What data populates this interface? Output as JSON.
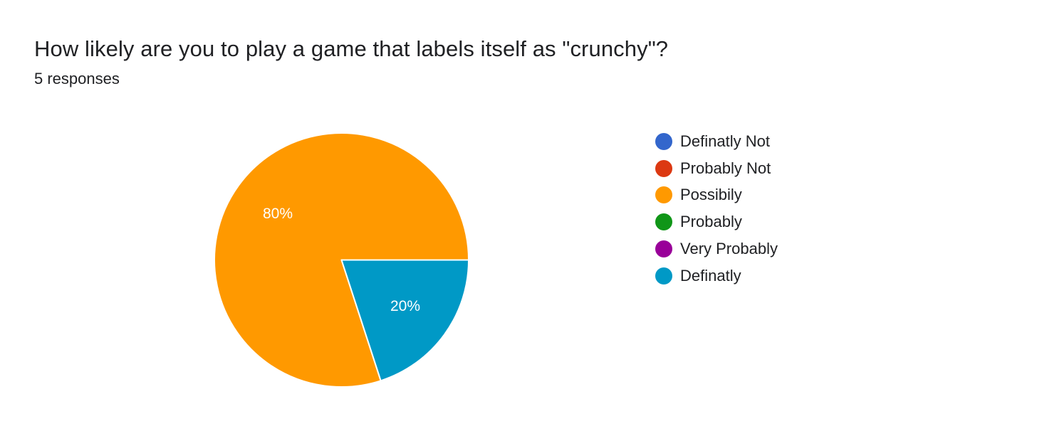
{
  "header": {
    "question": "How likely are you to play a game that labels itself as \"crunchy\"?",
    "responses": "5 responses"
  },
  "chart_data": {
    "type": "pie",
    "title": "How likely are you to play a game that labels itself as \"crunchy\"?",
    "subtitle": "5 responses",
    "legend_position": "right",
    "slices": [
      {
        "label": "Definatly Not",
        "value": 0,
        "percent_label": "",
        "color": "#3366cc"
      },
      {
        "label": "Probably Not",
        "value": 0,
        "percent_label": "",
        "color": "#dc3912"
      },
      {
        "label": "Possibily",
        "value": 80,
        "percent_label": "80%",
        "color": "#ff9900"
      },
      {
        "label": "Probably",
        "value": 0,
        "percent_label": "",
        "color": "#109618"
      },
      {
        "label": "Very Probably",
        "value": 0,
        "percent_label": "",
        "color": "#990099"
      },
      {
        "label": "Definatly",
        "value": 20,
        "percent_label": "20%",
        "color": "#0099c6"
      }
    ]
  }
}
